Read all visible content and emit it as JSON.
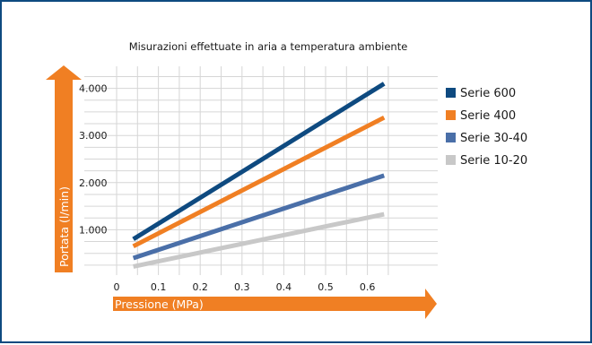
{
  "colors": {
    "frame": "#0e4a80",
    "grid": "#d6d6d6",
    "arrow": "#f07f23",
    "text": "#1a1a1a"
  },
  "chart_data": {
    "type": "line",
    "title": "Misurazioni effettuate in aria a temperatura ambiente",
    "xlabel": "Pressione (MPa)",
    "ylabel": "Portata (l/min)",
    "xlim": [
      0,
      0.65
    ],
    "ylim": [
      0,
      4200
    ],
    "x_ticks": [
      0,
      0.1,
      0.2,
      0.3,
      0.4,
      0.5,
      0.6
    ],
    "x_tick_labels": [
      "0",
      "0.1",
      "0.2",
      "0.3",
      "0.4",
      "0.5",
      "0.6"
    ],
    "y_ticks": [
      1000,
      2000,
      3000,
      4000
    ],
    "y_tick_labels": [
      "1.000",
      "2.000",
      "3.000",
      "4.000"
    ],
    "grid": true,
    "legend_position": "right",
    "series": [
      {
        "name": "Serie 600",
        "color": "#0e4a80",
        "x": [
          0.04,
          0.64
        ],
        "y": [
          800,
          4100
        ]
      },
      {
        "name": "Serie 400",
        "color": "#f07f23",
        "x": [
          0.04,
          0.64
        ],
        "y": [
          650,
          3380
        ]
      },
      {
        "name": "Serie 30-40",
        "color": "#4a6fa8",
        "x": [
          0.04,
          0.64
        ],
        "y": [
          400,
          2150
        ]
      },
      {
        "name": "Serie 10-20",
        "color": "#c8c8c8",
        "x": [
          0.04,
          0.64
        ],
        "y": [
          220,
          1330
        ]
      }
    ]
  }
}
